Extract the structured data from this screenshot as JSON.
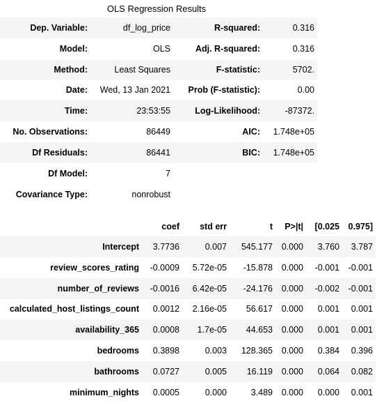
{
  "summary": {
    "caption": "OLS Regression Results",
    "rows": [
      {
        "l1": "Dep. Variable:",
        "v1": "df_log_price",
        "l2": "R-squared:",
        "v2": "0.316"
      },
      {
        "l1": "Model:",
        "v1": "OLS",
        "l2": "Adj. R-squared:",
        "v2": "0.316"
      },
      {
        "l1": "Method:",
        "v1": "Least Squares",
        "l2": "F-statistic:",
        "v2": "5702."
      },
      {
        "l1": "Date:",
        "v1": "Wed, 13 Jan 2021",
        "l2": "Prob (F-statistic):",
        "v2": "0.00"
      },
      {
        "l1": "Time:",
        "v1": "23:53:55",
        "l2": "Log-Likelihood:",
        "v2": "-87372."
      },
      {
        "l1": "No. Observations:",
        "v1": "86449",
        "l2": "AIC:",
        "v2": "1.748e+05"
      },
      {
        "l1": "Df Residuals:",
        "v1": "86441",
        "l2": "BIC:",
        "v2": "1.748e+05"
      },
      {
        "l1": "Df Model:",
        "v1": "7",
        "l2": "",
        "v2": ""
      },
      {
        "l1": "Covariance Type:",
        "v1": "nonrobust",
        "l2": "",
        "v2": ""
      }
    ]
  },
  "coefficients": {
    "headers": [
      "",
      "coef",
      "std err",
      "t",
      "P>|t|",
      "[0.025",
      "0.975]"
    ],
    "rows": [
      [
        "Intercept",
        "3.7736",
        "0.007",
        "545.177",
        "0.000",
        "3.760",
        "3.787"
      ],
      [
        "review_scores_rating",
        "-0.0009",
        "5.72e-05",
        "-15.878",
        "0.000",
        "-0.001",
        "-0.001"
      ],
      [
        "number_of_reviews",
        "-0.0016",
        "6.42e-05",
        "-24.176",
        "0.000",
        "-0.002",
        "-0.001"
      ],
      [
        "calculated_host_listings_count",
        "0.0012",
        "2.16e-05",
        "56.617",
        "0.000",
        "0.001",
        "0.001"
      ],
      [
        "availability_365",
        "0.0008",
        "1.7e-05",
        "44.653",
        "0.000",
        "0.001",
        "0.001"
      ],
      [
        "bedrooms",
        "0.3898",
        "0.003",
        "128.365",
        "0.000",
        "0.384",
        "0.396"
      ],
      [
        "bathrooms",
        "0.0727",
        "0.005",
        "16.119",
        "0.000",
        "0.064",
        "0.082"
      ],
      [
        "minimum_nights",
        "0.0005",
        "0.000",
        "3.489",
        "0.000",
        "0.000",
        "0.001"
      ]
    ]
  }
}
